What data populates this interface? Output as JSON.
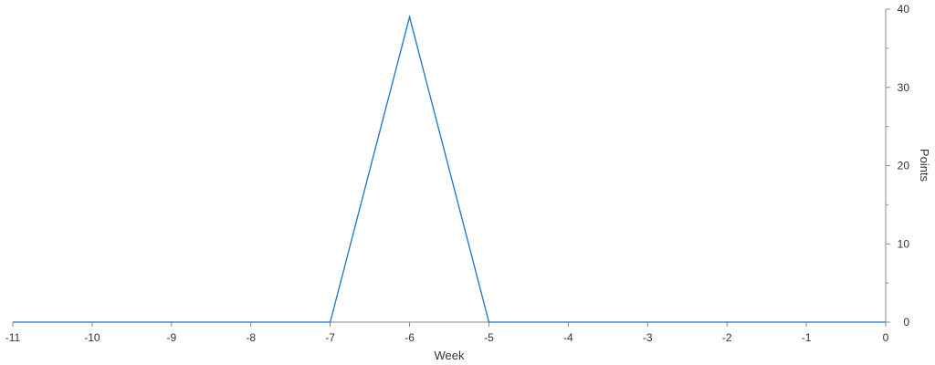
{
  "chart_data": {
    "type": "line",
    "xlabel": "Week",
    "ylabel": "Points",
    "xlim": [
      -11,
      0
    ],
    "ylim": [
      0,
      40
    ],
    "x_ticks": [
      -11,
      -10,
      -9,
      -8,
      -7,
      -6,
      -5,
      -4,
      -3,
      -2,
      -1,
      0
    ],
    "y_ticks": [
      0,
      10,
      20,
      30,
      40
    ],
    "y_axis_position": "right",
    "grid": false,
    "legend": "none",
    "series": [
      {
        "color": "#1a73c8",
        "x": [
          -11,
          -10,
          -9,
          -8,
          -7,
          -6,
          -5,
          -4,
          -3,
          -2,
          -1,
          0
        ],
        "y": [
          0,
          0,
          0,
          0,
          0,
          39,
          0,
          0,
          0,
          0,
          0,
          0
        ]
      }
    ]
  }
}
